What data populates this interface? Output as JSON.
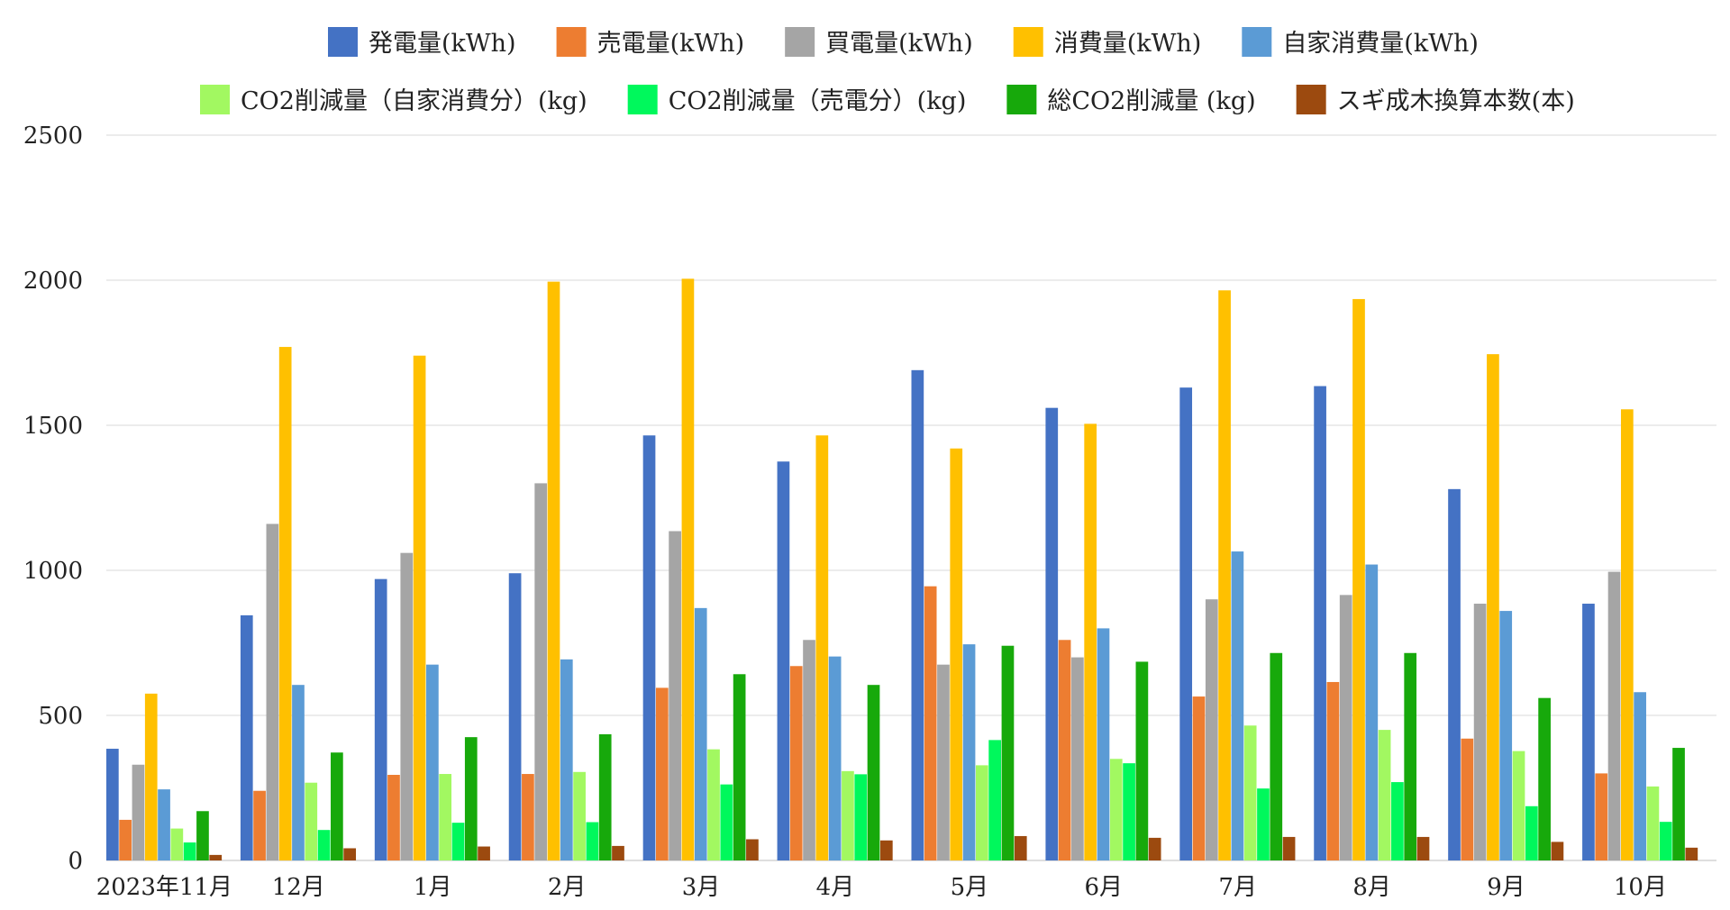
{
  "chart_data": {
    "type": "bar",
    "categories": [
      "2023年11月",
      "12月",
      "1月",
      "2月",
      "3月",
      "4月",
      "5月",
      "6月",
      "7月",
      "8月",
      "9月",
      "10月"
    ],
    "series": [
      {
        "name": "発電量(kWh)",
        "color": "#4472C4",
        "values": [
          385,
          845,
          970,
          990,
          1465,
          1375,
          1690,
          1560,
          1630,
          1635,
          1280,
          885
        ]
      },
      {
        "name": "売電量(kWh)",
        "color": "#ED7D31",
        "values": [
          140,
          240,
          295,
          298,
          595,
          670,
          945,
          760,
          565,
          615,
          420,
          300
        ]
      },
      {
        "name": "買電量(kWh)",
        "color": "#A5A5A5",
        "values": [
          330,
          1160,
          1060,
          1300,
          1135,
          760,
          675,
          700,
          900,
          915,
          885,
          995
        ]
      },
      {
        "name": "消費量(kWh)",
        "color": "#FFC000",
        "values": [
          575,
          1770,
          1740,
          1995,
          2005,
          1465,
          1420,
          1505,
          1965,
          1935,
          1745,
          1555
        ]
      },
      {
        "name": "自家消費量(kWh)",
        "color": "#5B9BD5",
        "values": [
          245,
          605,
          675,
          693,
          870,
          703,
          745,
          800,
          1065,
          1020,
          860,
          580
        ]
      },
      {
        "name": "CO2削減量（自家消費分）(kg)",
        "color": "#A2F861",
        "values": [
          110,
          268,
          298,
          305,
          383,
          308,
          328,
          350,
          465,
          450,
          377,
          255
        ]
      },
      {
        "name": "CO2削減量（売電分）(kg)",
        "color": "#00F85C",
        "values": [
          62,
          105,
          130,
          132,
          262,
          297,
          415,
          335,
          248,
          270,
          187,
          133
        ]
      },
      {
        "name": "総CO2削減量 (kg)",
        "color": "#17A90B",
        "values": [
          170,
          372,
          425,
          435,
          642,
          605,
          740,
          685,
          715,
          715,
          560,
          388
        ]
      },
      {
        "name": "スギ成木換算本数(本)",
        "color": "#9C4A0F",
        "values": [
          19,
          42,
          48,
          50,
          73,
          69,
          84,
          78,
          81,
          81,
          64,
          44
        ]
      }
    ],
    "yticks": [
      "0",
      "500",
      "1000",
      "1500",
      "2000",
      "2500"
    ],
    "ylim": [
      0,
      2500
    ],
    "grid": true,
    "legend": "top"
  }
}
